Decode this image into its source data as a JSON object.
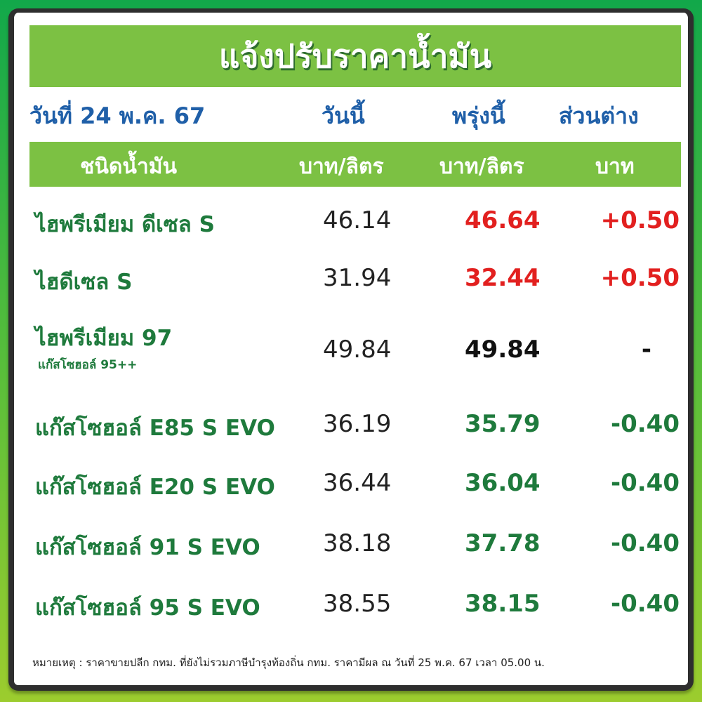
{
  "title": "แจ้งปรับราคาน้ำมัน",
  "header": {
    "date": "วันที่ 24 พ.ค. 67",
    "today": "วันนี้",
    "tomorrow": "พรุ่งนี้",
    "diff": "ส่วนต่าง"
  },
  "units": {
    "type": "ชนิดน้ำมัน",
    "today": "บาท/ลิตร",
    "tomorrow": "บาท/ลิตร",
    "diff": "บาท"
  },
  "colors": {
    "up": "#e2201f",
    "down": "#1e7a3c",
    "same": "#111111",
    "header_blue": "#1f5fa8",
    "bar_green": "#7cc143"
  },
  "rows": [
    {
      "name": "ไฮพรีเมียม ดีเซล S",
      "today": "46.14",
      "tomorrow": "46.64",
      "diff": "+0.50",
      "trend": "up"
    },
    {
      "name": "ไฮดีเซล S",
      "today": "31.94",
      "tomorrow": "32.44",
      "diff": "+0.50",
      "trend": "up"
    },
    {
      "name": "ไฮพรีเมียม 97",
      "sub": "แก๊สโซฮอล์ 95++",
      "today": "49.84",
      "tomorrow": "49.84",
      "diff": "-",
      "trend": "same"
    },
    {
      "name": "แก๊สโซฮอล์ E85 S EVO",
      "today": "36.19",
      "tomorrow": "35.79",
      "diff": "-0.40",
      "trend": "down"
    },
    {
      "name": "แก๊สโซฮอล์ E20 S EVO",
      "today": "36.44",
      "tomorrow": "36.04",
      "diff": "-0.40",
      "trend": "down"
    },
    {
      "name": "แก๊สโซฮอล์ 91 S EVO",
      "today": "38.18",
      "tomorrow": "37.78",
      "diff": "-0.40",
      "trend": "down"
    },
    {
      "name": "แก๊สโซฮอล์ 95 S EVO",
      "today": "38.55",
      "tomorrow": "38.15",
      "diff": "-0.40",
      "trend": "down"
    }
  ],
  "note": "หมายเหตุ :  ราคาขายปลีก กทม. ที่ยังไม่รวมภาษีบำรุงท้องถิ่น  กทม.  ราคามีผล ณ วันที่ 25 พ.ค. 67 เวลา 05.00 น."
}
